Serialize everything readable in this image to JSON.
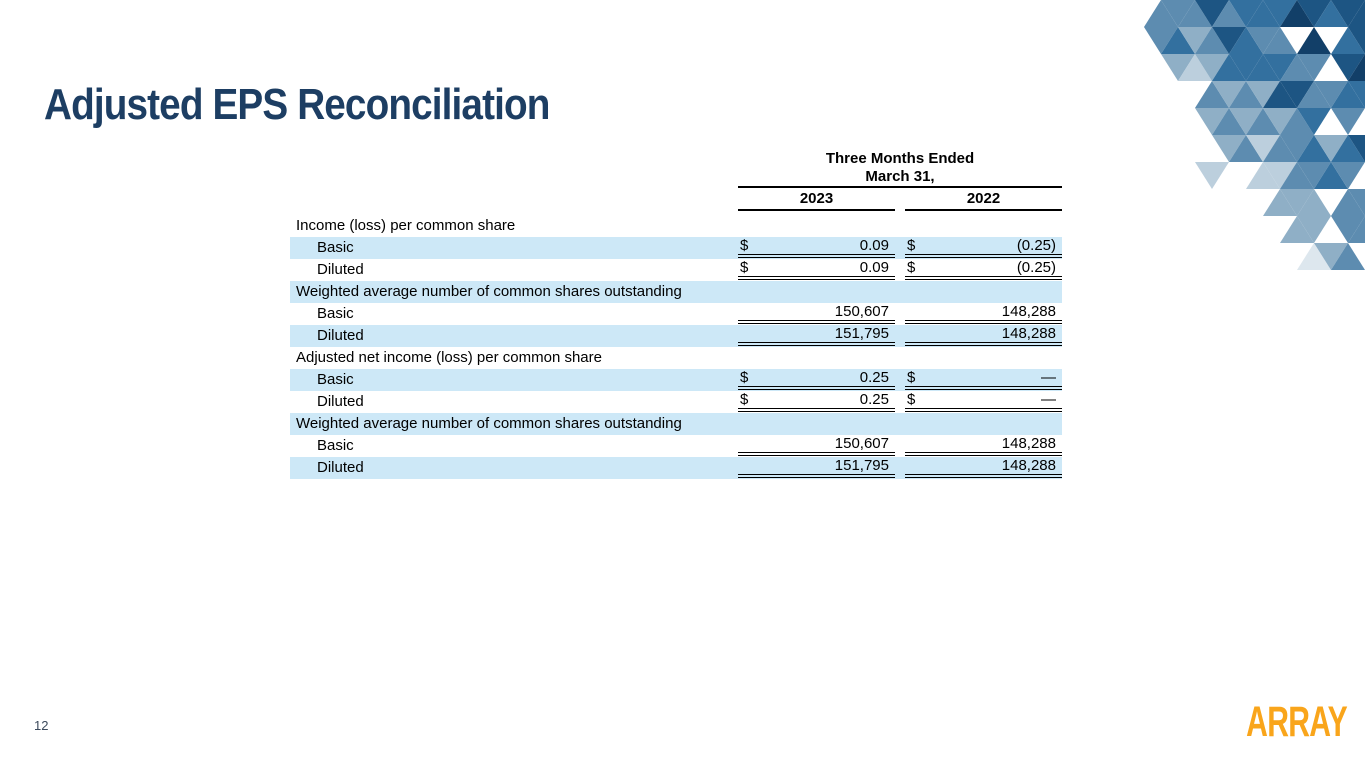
{
  "slide": {
    "title": "Adjusted EPS Reconciliation",
    "page_number": "12",
    "logo_text": "ARRAY"
  },
  "colors": {
    "title_navy": "#1d3e63",
    "row_highlight": "#cde8f7",
    "logo_orange": "#F9A51B",
    "table_text": "#000000",
    "page_number_color": "#3c4a5c",
    "mosaic_palette": [
      "#123f68",
      "#1d5583",
      "#33709f",
      "#5d8cb0",
      "#8fafc6",
      "#bccfdd",
      "#dde7ee"
    ]
  },
  "table": {
    "header": {
      "period_line1": "Three Months Ended",
      "period_line2": "March 31,",
      "columns": [
        "2023",
        "2022"
      ]
    },
    "rows": [
      {
        "label": "Income (loss) per common share",
        "indent": 0,
        "shaded": false,
        "values": null,
        "underline": null
      },
      {
        "label": "Basic",
        "indent": 1,
        "shaded": true,
        "values": [
          {
            "prefix": "$",
            "amount": "0.09"
          },
          {
            "prefix": "$",
            "amount": "(0.25)"
          }
        ],
        "underline": "double"
      },
      {
        "label": "Diluted",
        "indent": 1,
        "shaded": false,
        "values": [
          {
            "prefix": "$",
            "amount": "0.09"
          },
          {
            "prefix": "$",
            "amount": "(0.25)"
          }
        ],
        "underline": "double"
      },
      {
        "label": "Weighted average number of common shares outstanding",
        "indent": 0,
        "shaded": true,
        "values": null,
        "underline": null
      },
      {
        "label": "Basic",
        "indent": 1,
        "shaded": false,
        "values": [
          {
            "prefix": "",
            "amount": "150,607"
          },
          {
            "prefix": "",
            "amount": "148,288"
          }
        ],
        "underline": "double"
      },
      {
        "label": "Diluted",
        "indent": 1,
        "shaded": true,
        "values": [
          {
            "prefix": "",
            "amount": "151,795"
          },
          {
            "prefix": "",
            "amount": "148,288"
          }
        ],
        "underline": "double"
      },
      {
        "label": "Adjusted net income (loss) per common share",
        "indent": 0,
        "shaded": false,
        "values": null,
        "underline": null
      },
      {
        "label": "Basic",
        "indent": 1,
        "shaded": true,
        "values": [
          {
            "prefix": "$",
            "amount": "0.25"
          },
          {
            "prefix": "$",
            "amount": "—"
          }
        ],
        "underline": "double"
      },
      {
        "label": "Diluted",
        "indent": 1,
        "shaded": false,
        "values": [
          {
            "prefix": "$",
            "amount": "0.25"
          },
          {
            "prefix": "$",
            "amount": "—"
          }
        ],
        "underline": "double"
      },
      {
        "label": "Weighted average number of common shares outstanding",
        "indent": 0,
        "shaded": true,
        "values": null,
        "underline": null
      },
      {
        "label": "Basic",
        "indent": 1,
        "shaded": false,
        "values": [
          {
            "prefix": "",
            "amount": "150,607"
          },
          {
            "prefix": "",
            "amount": "148,288"
          }
        ],
        "underline": "double"
      },
      {
        "label": "Diluted",
        "indent": 1,
        "shaded": true,
        "values": [
          {
            "prefix": "",
            "amount": "151,795"
          },
          {
            "prefix": "",
            "amount": "148,288"
          }
        ],
        "underline": "double"
      }
    ]
  }
}
